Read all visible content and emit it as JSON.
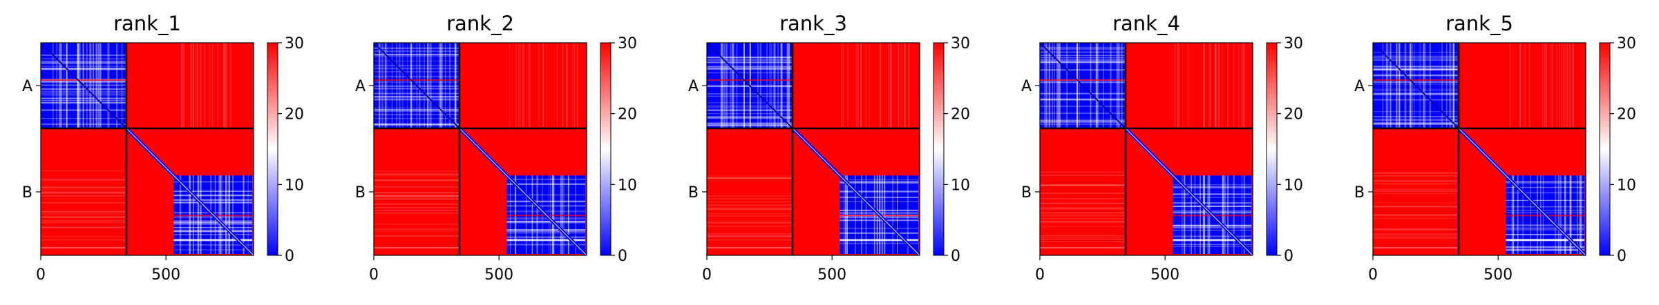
{
  "figure": {
    "background": "#ffffff",
    "panel_count": 5
  },
  "chart_data": [
    {
      "type": "heatmap",
      "title": "rank_1",
      "xlabel": "",
      "ylabel": "",
      "x_ticks": [
        0,
        500
      ],
      "xlim": [
        0,
        850
      ],
      "y_tick_labels": [
        "A",
        "B"
      ],
      "chains": [
        {
          "name": "A",
          "start": 0,
          "end": 341
        },
        {
          "name": "B",
          "start": 341,
          "end": 850
        }
      ],
      "colormap": "bwr",
      "colors": {
        "low": "#0000ff",
        "mid": "#ffffff",
        "high": "#ff0000"
      },
      "vmin": 0,
      "vmax": 30,
      "colorbar_ticks": [
        "0",
        "10",
        "20",
        "30"
      ],
      "blocks": [
        {
          "rows": "A",
          "cols": "A",
          "mean_value": 4,
          "description": "low values with diagonal"
        },
        {
          "rows": "A",
          "cols": "B",
          "mean_value": 30
        },
        {
          "rows": "B",
          "cols": "A",
          "mean_value": 30
        },
        {
          "rows": "B",
          "cols": "B",
          "mean_value": 30,
          "low_region": [
            530,
            850
          ]
        }
      ]
    },
    {
      "type": "heatmap",
      "title": "rank_2",
      "xlabel": "",
      "ylabel": "",
      "x_ticks": [
        0,
        500
      ],
      "xlim": [
        0,
        850
      ],
      "y_tick_labels": [
        "A",
        "B"
      ],
      "chains": [
        {
          "name": "A",
          "start": 0,
          "end": 341
        },
        {
          "name": "B",
          "start": 341,
          "end": 850
        }
      ],
      "colormap": "bwr",
      "colors": {
        "low": "#0000ff",
        "mid": "#ffffff",
        "high": "#ff0000"
      },
      "vmin": 0,
      "vmax": 30,
      "colorbar_ticks": [
        "0",
        "10",
        "20",
        "30"
      ],
      "blocks": [
        {
          "rows": "A",
          "cols": "A",
          "mean_value": 4
        },
        {
          "rows": "A",
          "cols": "B",
          "mean_value": 30
        },
        {
          "rows": "B",
          "cols": "A",
          "mean_value": 30
        },
        {
          "rows": "B",
          "cols": "B",
          "mean_value": 30,
          "low_region": [
            530,
            850
          ]
        }
      ]
    },
    {
      "type": "heatmap",
      "title": "rank_3",
      "xlabel": "",
      "ylabel": "",
      "x_ticks": [
        0,
        500
      ],
      "xlim": [
        0,
        850
      ],
      "y_tick_labels": [
        "A",
        "B"
      ],
      "chains": [
        {
          "name": "A",
          "start": 0,
          "end": 341
        },
        {
          "name": "B",
          "start": 341,
          "end": 850
        }
      ],
      "colormap": "bwr",
      "colors": {
        "low": "#0000ff",
        "mid": "#ffffff",
        "high": "#ff0000"
      },
      "vmin": 0,
      "vmax": 30,
      "colorbar_ticks": [
        "0",
        "10",
        "20",
        "30"
      ],
      "blocks": [
        {
          "rows": "A",
          "cols": "A",
          "mean_value": 4
        },
        {
          "rows": "A",
          "cols": "B",
          "mean_value": 30
        },
        {
          "rows": "B",
          "cols": "A",
          "mean_value": 30
        },
        {
          "rows": "B",
          "cols": "B",
          "mean_value": 30,
          "low_region": [
            530,
            850
          ]
        }
      ]
    },
    {
      "type": "heatmap",
      "title": "rank_4",
      "xlabel": "",
      "ylabel": "",
      "x_ticks": [
        0,
        500
      ],
      "xlim": [
        0,
        850
      ],
      "y_tick_labels": [
        "A",
        "B"
      ],
      "chains": [
        {
          "name": "A",
          "start": 0,
          "end": 341
        },
        {
          "name": "B",
          "start": 341,
          "end": 850
        }
      ],
      "colormap": "bwr",
      "colors": {
        "low": "#0000ff",
        "mid": "#ffffff",
        "high": "#ff0000"
      },
      "vmin": 0,
      "vmax": 30,
      "colorbar_ticks": [
        "0",
        "10",
        "20",
        "30"
      ],
      "blocks": [
        {
          "rows": "A",
          "cols": "A",
          "mean_value": 4
        },
        {
          "rows": "A",
          "cols": "B",
          "mean_value": 30
        },
        {
          "rows": "B",
          "cols": "A",
          "mean_value": 30
        },
        {
          "rows": "B",
          "cols": "B",
          "mean_value": 30,
          "low_region": [
            530,
            850
          ]
        }
      ]
    },
    {
      "type": "heatmap",
      "title": "rank_5",
      "xlabel": "",
      "ylabel": "",
      "x_ticks": [
        0,
        500
      ],
      "xlim": [
        0,
        850
      ],
      "y_tick_labels": [
        "A",
        "B"
      ],
      "chains": [
        {
          "name": "A",
          "start": 0,
          "end": 341
        },
        {
          "name": "B",
          "start": 341,
          "end": 850
        }
      ],
      "colormap": "bwr",
      "colors": {
        "low": "#0000ff",
        "mid": "#ffffff",
        "high": "#ff0000"
      },
      "vmin": 0,
      "vmax": 30,
      "colorbar_ticks": [
        "0",
        "10",
        "20",
        "30"
      ],
      "blocks": [
        {
          "rows": "A",
          "cols": "A",
          "mean_value": 4
        },
        {
          "rows": "A",
          "cols": "B",
          "mean_value": 30
        },
        {
          "rows": "B",
          "cols": "A",
          "mean_value": 30
        },
        {
          "rows": "B",
          "cols": "B",
          "mean_value": 30,
          "low_region": [
            530,
            850
          ]
        }
      ]
    }
  ]
}
